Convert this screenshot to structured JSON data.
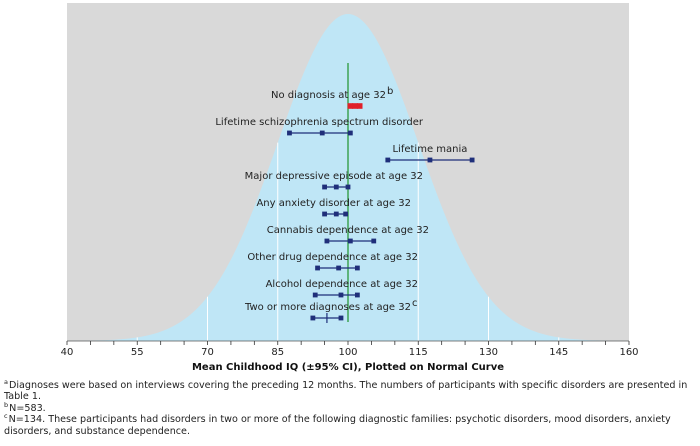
{
  "chart_data": {
    "type": "scatter",
    "xlabel": "Mean Childhood IQ (±95% CI), Plotted on Normal Curve",
    "xlim": [
      40,
      160
    ],
    "xticks_labeled": [
      40,
      55,
      70,
      85,
      100,
      115,
      130,
      145,
      160
    ],
    "xticks_minor_step": 5,
    "reference_line_x": 100,
    "background_color": "#d9d9d9",
    "curve_color": "#bfe6f6",
    "marker_color": "#1f2f7a",
    "highlight_color": "#e0202a",
    "reference_color": "#2a9a3a",
    "series": [
      {
        "label": "No diagnosis at age 32",
        "note_mark": "b",
        "low": 100.5,
        "mean": 101.5,
        "high": 102.5,
        "highlight": true
      },
      {
        "label": "Lifetime schizophrenia spectrum disorder",
        "note_mark": "",
        "low": 87.5,
        "mean": 94.5,
        "high": 100.5
      },
      {
        "label": "Lifetime mania",
        "note_mark": "",
        "low": 108.5,
        "mean": 117.5,
        "high": 126.5
      },
      {
        "label": "Major depressive episode at age 32",
        "note_mark": "",
        "low": 95.0,
        "mean": 97.5,
        "high": 100.0
      },
      {
        "label": "Any anxiety disorder at age 32",
        "note_mark": "",
        "low": 95.0,
        "mean": 97.5,
        "high": 99.5
      },
      {
        "label": "Cannabis dependence at age 32",
        "note_mark": "",
        "low": 95.5,
        "mean": 100.5,
        "high": 105.5
      },
      {
        "label": "Other drug dependence at age 32",
        "note_mark": "",
        "low": 93.5,
        "mean": 98.0,
        "high": 102.0
      },
      {
        "label": "Alcohol dependence at age 32",
        "note_mark": "",
        "low": 93.0,
        "mean": 98.5,
        "high": 102.0
      },
      {
        "label": "Two or more diagnoses at age 32",
        "note_mark": "c",
        "low": 92.5,
        "mean": 95.5,
        "high": 98.5
      }
    ]
  },
  "footnotes": [
    {
      "mark": "a",
      "text": "Diagnoses were based on interviews covering the preceding 12 months. The numbers of participants with specific disorders are presented in Table 1."
    },
    {
      "mark": "b",
      "text": "N=583."
    },
    {
      "mark": "c",
      "text": "N=134. These participants had disorders in two or more of the following diagnostic families: psychotic disorders, mood disorders, anxiety disorders, and substance dependence."
    }
  ]
}
